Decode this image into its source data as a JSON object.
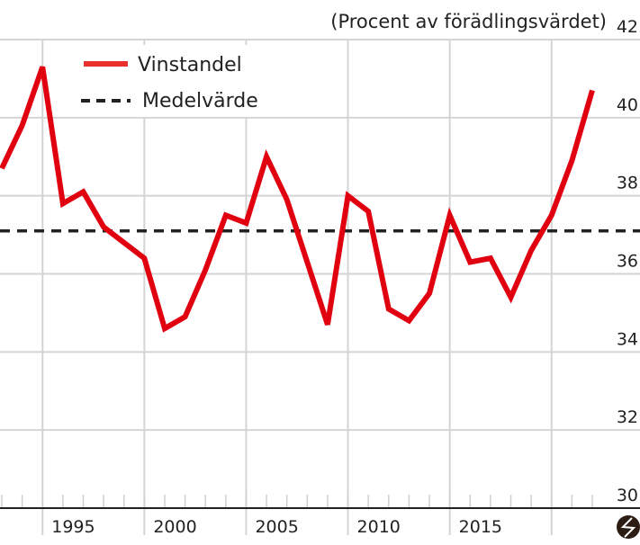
{
  "chart_data": {
    "type": "line",
    "title": "(Procent av förädlingsvärdet)",
    "xlabel": "",
    "ylabel": "",
    "ylim": [
      30,
      42
    ],
    "yticks": [
      30,
      32,
      34,
      36,
      38,
      40,
      42
    ],
    "xlim": [
      1993,
      2022
    ],
    "xticks": [
      1995,
      2000,
      2005,
      2010,
      2015
    ],
    "grid": true,
    "legend_position": "top-left",
    "series": [
      {
        "name": "Vinstandel",
        "color": "#e0000f",
        "style": "solid",
        "x": [
          1993,
          1994,
          1995,
          1996,
          1997,
          1998,
          1999,
          2000,
          2001,
          2002,
          2003,
          2004,
          2005,
          2006,
          2007,
          2008,
          2009,
          2010,
          2011,
          2012,
          2013,
          2014,
          2015,
          2016,
          2017,
          2018,
          2019,
          2020,
          2021,
          2022
        ],
        "values": [
          38.7,
          39.8,
          41.3,
          37.8,
          38.1,
          37.2,
          36.8,
          36.4,
          34.6,
          34.9,
          36.1,
          37.5,
          37.3,
          39.0,
          37.9,
          36.3,
          34.7,
          38.0,
          37.6,
          35.1,
          34.8,
          35.5,
          37.5,
          36.3,
          36.4,
          35.4,
          36.6,
          37.5,
          38.9,
          40.7
        ]
      },
      {
        "name": "Medelvärde",
        "color": "#222222",
        "style": "dashed",
        "values": [
          37.1
        ]
      }
    ]
  },
  "logo": "lightning-circle-logo"
}
